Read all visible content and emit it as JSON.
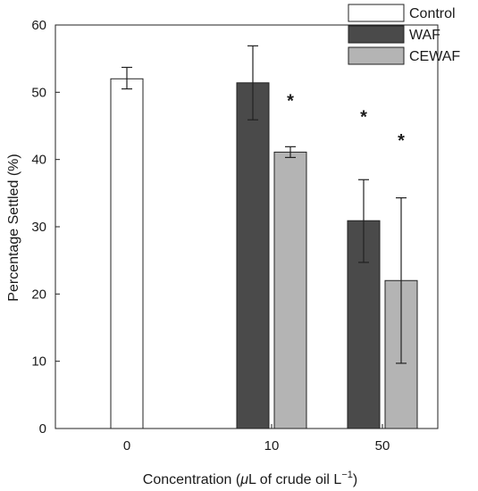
{
  "chart_data": {
    "type": "bar",
    "categories": [
      "0",
      "10",
      "50"
    ],
    "series": [
      {
        "name": "Control",
        "color": "#ffffff",
        "values": [
          52.0,
          null,
          null
        ],
        "errors": [
          [
            50.5,
            53.7
          ],
          null,
          null
        ]
      },
      {
        "name": "WAF",
        "color": "#4a4a4a",
        "values": [
          null,
          51.4,
          30.9
        ],
        "errors": [
          null,
          [
            45.9,
            56.9
          ],
          [
            24.7,
            37.0
          ]
        ]
      },
      {
        "name": "CEWAF",
        "color": "#b4b4b4",
        "values": [
          null,
          41.1,
          22.0
        ],
        "errors": [
          null,
          [
            40.3,
            41.9
          ],
          [
            9.7,
            34.3
          ]
        ]
      }
    ],
    "annotations": [
      {
        "text": "*",
        "category": "10",
        "series": "CEWAF",
        "y": 49.2
      },
      {
        "text": "*",
        "category": "50",
        "series": "WAF",
        "y": 46.8
      },
      {
        "text": "*",
        "category": "50",
        "series": "CEWAF",
        "y": 43.3
      }
    ],
    "xlabel_prefix": "Concentration (",
    "xlabel_mu": "μ",
    "xlabel_main": "L of crude oil L",
    "xlabel_sup": "−1",
    "xlabel_suffix": ")",
    "ylabel": "Percentage Settled (%)",
    "ylim": [
      0,
      60
    ],
    "yticks": [
      0,
      10,
      20,
      30,
      40,
      50,
      60
    ],
    "grid": false,
    "legend": "top-right"
  }
}
